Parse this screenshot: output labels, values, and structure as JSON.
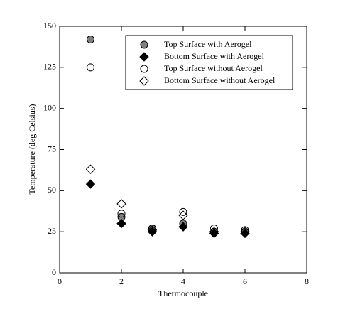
{
  "chart_data": {
    "type": "scatter",
    "x_label": "Thermocouple",
    "y_label": "Temperature (deg Celsius)",
    "x": [
      1,
      2,
      3,
      4,
      5,
      6
    ],
    "series": [
      {
        "name": "Top Surface with Aerogel",
        "marker": "circle",
        "color": "#000000",
        "fill": "#7f7f7f",
        "values": [
          142,
          34,
          27,
          30,
          25,
          25
        ]
      },
      {
        "name": "Bottom Surface with Aerogel",
        "marker": "diamond",
        "color": "#000000",
        "fill": "#000000",
        "values": [
          54,
          30,
          25,
          28,
          24,
          24
        ]
      },
      {
        "name": "Top Surface without Aerogel",
        "marker": "circle",
        "color": "#000000",
        "fill": "none",
        "values": [
          125,
          36,
          27,
          37,
          27,
          26
        ]
      },
      {
        "name": "Bottom Surface without Aerogel",
        "marker": "diamond",
        "color": "#000000",
        "fill": "none",
        "values": [
          63,
          42,
          26,
          35,
          25,
          25
        ]
      }
    ],
    "xlim": [
      0,
      8
    ],
    "xticks": [
      0,
      2,
      4,
      6,
      8
    ],
    "ylim": [
      0,
      150
    ],
    "yticks": [
      0,
      25,
      50,
      75,
      100,
      125,
      150
    ],
    "legend": "upper-right"
  }
}
